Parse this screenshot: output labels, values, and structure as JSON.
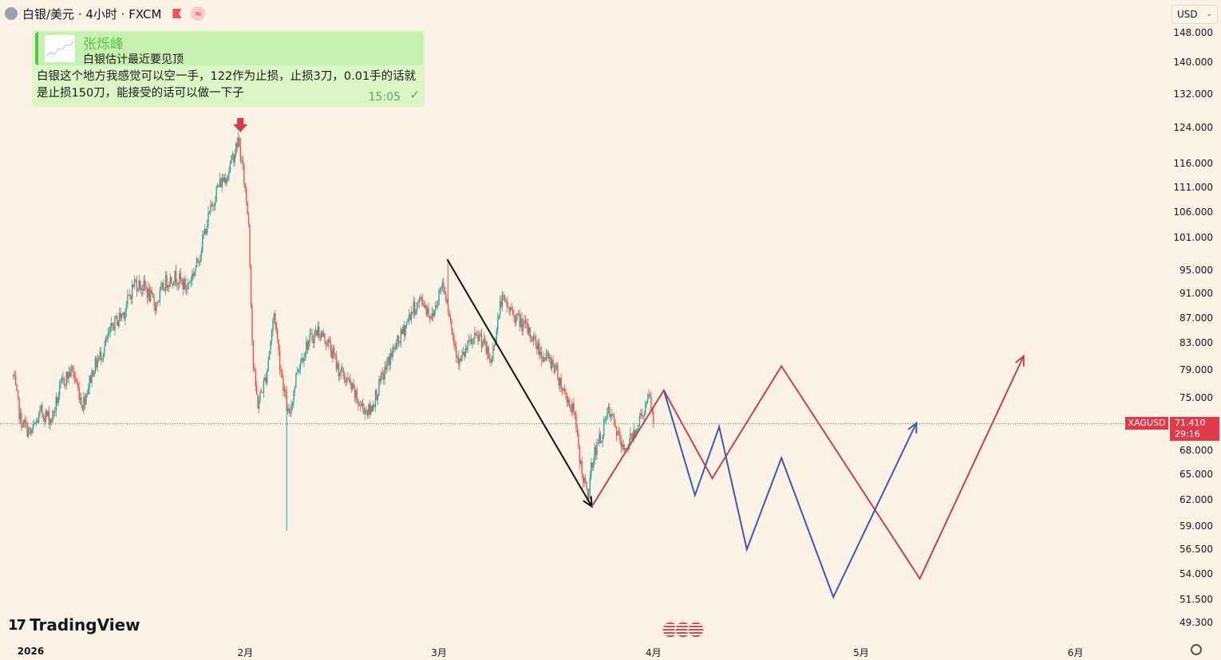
{
  "header": {
    "title": "白银/美元 · 4小时 · FXCM",
    "currency": "USD"
  },
  "chat": {
    "sender": "张烁峰",
    "quote": "白银估计最近要见顶",
    "message": "白银这个地方我感觉可以空一手，122作为止损，止损3刀，0.01手的话就是止损150刀，能接受的话可以做一下子",
    "time": "15:05",
    "check": "✓"
  },
  "price_tag": {
    "symbol": "XAGUSD",
    "price": "71.410",
    "countdown": "29:16",
    "color": "#e03947"
  },
  "logo": {
    "mark": "17",
    "text": "TradingView"
  },
  "colors": {
    "up": "#26a69a",
    "down": "#ef5350",
    "projection_red": "#c9414b",
    "projection_blue": "#3a59b8",
    "trendline": "#111111",
    "background": "#fbf1e4"
  },
  "chart_data": {
    "type": "candlestick",
    "symbol": "XAGUSD",
    "timeframe": "4小时",
    "source": "FXCM",
    "y_scale": "log",
    "ylim": [
      48.5,
      150
    ],
    "y_ticks": [
      {
        "label": "148.000",
        "v": 148
      },
      {
        "label": "140.000",
        "v": 140
      },
      {
        "label": "132.000",
        "v": 132
      },
      {
        "label": "124.000",
        "v": 124
      },
      {
        "label": "116.000",
        "v": 116
      },
      {
        "label": "111.000",
        "v": 111
      },
      {
        "label": "106.000",
        "v": 106
      },
      {
        "label": "101.000",
        "v": 101
      },
      {
        "label": "95.000",
        "v": 95
      },
      {
        "label": "91.000",
        "v": 91
      },
      {
        "label": "87.000",
        "v": 87
      },
      {
        "label": "83.000",
        "v": 83
      },
      {
        "label": "79.000",
        "v": 79
      },
      {
        "label": "75.000",
        "v": 75
      },
      {
        "label": "68.000",
        "v": 68
      },
      {
        "label": "65.000",
        "v": 65
      },
      {
        "label": "62.000",
        "v": 62
      },
      {
        "label": "59.000",
        "v": 59
      },
      {
        "label": "56.500",
        "v": 56.5
      },
      {
        "label": "54.000",
        "v": 54
      },
      {
        "label": "51.500",
        "v": 51.5
      },
      {
        "label": "49.300",
        "v": 49.3
      }
    ],
    "x_ticks": [
      {
        "label": "2026",
        "day": 0,
        "year": true
      },
      {
        "label": "2月",
        "day": 31
      },
      {
        "label": "3月",
        "day": 59
      },
      {
        "label": "4月",
        "day": 90
      },
      {
        "label": "5月",
        "day": 120
      },
      {
        "label": "6月",
        "day": 151
      }
    ],
    "x_start_day": -2.5,
    "x_end_day": 170,
    "last_price": 71.41,
    "anchors": [
      [
        -2.5,
        78
      ],
      [
        -1.5,
        72
      ],
      [
        0,
        70
      ],
      [
        1.5,
        73
      ],
      [
        3,
        72
      ],
      [
        4.5,
        77
      ],
      [
        6,
        79
      ],
      [
        7.5,
        74
      ],
      [
        9,
        79
      ],
      [
        10.5,
        82
      ],
      [
        12,
        86
      ],
      [
        13.5,
        88
      ],
      [
        15,
        93
      ],
      [
        16.5,
        92
      ],
      [
        18,
        89
      ],
      [
        19.5,
        93
      ],
      [
        21,
        94
      ],
      [
        22.5,
        92
      ],
      [
        24,
        96
      ],
      [
        25.5,
        104
      ],
      [
        27,
        111
      ],
      [
        28.5,
        114
      ],
      [
        30,
        121
      ],
      [
        30.8,
        113
      ],
      [
        31.5,
        104
      ],
      [
        32.1,
        80
      ],
      [
        32.8,
        74
      ],
      [
        34,
        78
      ],
      [
        35.2,
        88
      ],
      [
        36,
        80
      ],
      [
        37.3,
        72
      ],
      [
        38.5,
        79
      ],
      [
        40,
        83
      ],
      [
        41.5,
        85
      ],
      [
        43,
        83
      ],
      [
        44.5,
        79
      ],
      [
        46,
        77
      ],
      [
        47.5,
        74
      ],
      [
        49,
        73
      ],
      [
        50.5,
        77
      ],
      [
        52,
        81
      ],
      [
        53.5,
        84
      ],
      [
        55,
        88
      ],
      [
        56.5,
        90
      ],
      [
        58,
        87
      ],
      [
        59.5,
        93
      ],
      [
        60.2,
        90
      ],
      [
        61,
        84
      ],
      [
        62,
        80
      ],
      [
        63.5,
        83
      ],
      [
        65,
        84
      ],
      [
        66.5,
        80
      ],
      [
        68,
        90
      ],
      [
        69.5,
        88
      ],
      [
        71,
        86
      ],
      [
        72.5,
        84
      ],
      [
        74,
        81
      ],
      [
        75.5,
        80
      ],
      [
        77,
        76
      ],
      [
        78.5,
        73
      ],
      [
        79.5,
        66
      ],
      [
        80.5,
        62
      ],
      [
        81.2,
        67
      ],
      [
        82.5,
        70
      ],
      [
        83.5,
        73
      ],
      [
        84.5,
        71
      ],
      [
        85.5,
        68
      ],
      [
        86.5,
        69
      ],
      [
        87.5,
        71
      ],
      [
        88.5,
        73
      ],
      [
        89.5,
        75
      ],
      [
        90,
        71.4
      ]
    ],
    "wicks": [
      {
        "day": 37.0,
        "low": 58.5
      },
      {
        "day": 30.3,
        "high": 121.6
      },
      {
        "day": 60.3,
        "high": 97
      }
    ],
    "lines": [
      {
        "name": "",
        "color": "#111111",
        "points": [
          [
            60.2,
            97
          ],
          [
            81.1,
            61.2
          ]
        ],
        "arrow": true
      },
      {
        "name": "",
        "color": "#c9414b",
        "points": [
          [
            81.1,
            61.2
          ],
          [
            91.5,
            76
          ],
          [
            98.5,
            64.5
          ],
          [
            108.5,
            79.5
          ],
          [
            128.5,
            53.5
          ],
          [
            143.5,
            81
          ]
        ],
        "arrow": true
      },
      {
        "name": "",
        "color": "#3a59b8",
        "points": [
          [
            91.5,
            76
          ],
          [
            96.0,
            62.5
          ],
          [
            99.5,
            71
          ],
          [
            103.5,
            56.5
          ],
          [
            108.5,
            67
          ],
          [
            116.0,
            51.7
          ],
          [
            128.0,
            71.5
          ]
        ],
        "arrow": true
      }
    ],
    "markers": [
      {
        "type": "arrow-down",
        "day": 30.3,
        "color": "#d23c45"
      }
    ]
  }
}
